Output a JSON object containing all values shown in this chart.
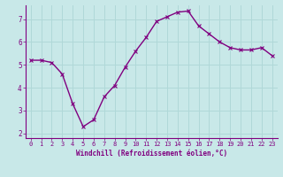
{
  "x": [
    0,
    1,
    2,
    3,
    4,
    5,
    6,
    7,
    8,
    9,
    10,
    11,
    12,
    13,
    14,
    15,
    16,
    17,
    18,
    19,
    20,
    21,
    22,
    23
  ],
  "y": [
    5.2,
    5.2,
    5.1,
    4.6,
    3.3,
    2.3,
    2.6,
    3.6,
    4.1,
    4.9,
    5.6,
    6.2,
    6.9,
    7.1,
    7.3,
    7.35,
    6.7,
    6.35,
    6.0,
    5.75,
    5.65,
    5.65,
    5.75,
    5.4
  ],
  "line_color": "#800080",
  "marker": "x",
  "marker_size": 3,
  "bg_color": "#c8e8e8",
  "grid_color": "#b0d8d8",
  "xlabel": "Windchill (Refroidissement éolien,°C)",
  "xlim_min": -0.5,
  "xlim_max": 23.5,
  "ylim_min": 1.8,
  "ylim_max": 7.6,
  "yticks": [
    2,
    3,
    4,
    5,
    6,
    7
  ],
  "xticks": [
    0,
    1,
    2,
    3,
    4,
    5,
    6,
    7,
    8,
    9,
    10,
    11,
    12,
    13,
    14,
    15,
    16,
    17,
    18,
    19,
    20,
    21,
    22,
    23
  ],
  "tick_color": "#800080",
  "label_color": "#800080",
  "axis_color": "#800080",
  "line_width": 1.0,
  "tick_fontsize": 5.0,
  "xlabel_fontsize": 5.5
}
